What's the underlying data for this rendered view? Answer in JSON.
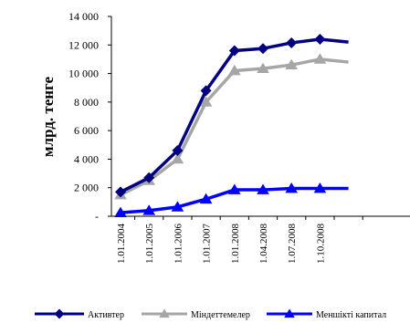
{
  "chart_data": {
    "type": "line",
    "title": "",
    "ylabel": "млрд. тенге",
    "xlabel": "",
    "categories": [
      "1.01.2004",
      "1.01.2005",
      "1.01.2006",
      "1.01.2007",
      "1.01.2008",
      "1.04.2008",
      "1.07.2008",
      "1.10.2008",
      ""
    ],
    "ylim": [
      0,
      14000
    ],
    "yticks": [
      0,
      2000,
      4000,
      6000,
      8000,
      10000,
      12000,
      14000
    ],
    "ytick_labels": [
      "-",
      "2 000",
      "4 000",
      "6 000",
      "8 000",
      "10 000",
      "12 000",
      "14 000"
    ],
    "grid": false,
    "legend_position": "bottom",
    "series": [
      {
        "name": "Активтер",
        "color": "#000080",
        "marker": "diamond",
        "values": [
          1700,
          2700,
          4600,
          8800,
          11600,
          11750,
          12150,
          12400,
          12200
        ]
      },
      {
        "name": "Міндеттемелер",
        "color": "#A6A6A6",
        "marker": "triangle",
        "values": [
          1500,
          2500,
          4000,
          8000,
          10200,
          10350,
          10600,
          11000,
          10800
        ]
      },
      {
        "name": "Меншікті капитал",
        "color": "#0000FF",
        "marker": "triangle",
        "values": [
          250,
          400,
          650,
          1200,
          1850,
          1850,
          1950,
          1950,
          1950
        ]
      }
    ]
  }
}
